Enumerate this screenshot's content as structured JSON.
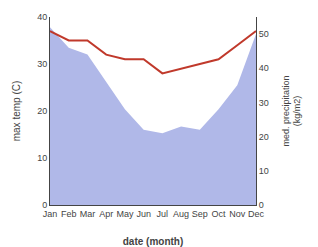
{
  "chart_data": {
    "type": "line",
    "categories": [
      "Jan",
      "Feb",
      "Mar",
      "Apr",
      "May",
      "Jun",
      "Jul",
      "Aug",
      "Sep",
      "Oct",
      "Nov",
      "Dec"
    ],
    "series": [
      {
        "type": "area",
        "axis": "y2",
        "color": "#b0b8e8",
        "values": [
          52,
          46,
          44,
          36,
          28,
          22,
          21,
          23,
          22,
          28,
          35,
          50
        ]
      },
      {
        "type": "line",
        "color": "#c0392b",
        "values": [
          37,
          35,
          35,
          32,
          31,
          31,
          28,
          29,
          30,
          31,
          34,
          37
        ]
      }
    ],
    "xlabel": "date (month)",
    "ylabel": "max temp (C)",
    "y2label": "med. precipitation\n(kg/m2)",
    "ylim": [
      0,
      40
    ],
    "yticks": [
      0,
      10,
      20,
      30,
      40
    ],
    "y2lim": [
      0,
      55
    ],
    "y2ticks": [
      0,
      10,
      20,
      30,
      40,
      50
    ],
    "grid": false
  }
}
